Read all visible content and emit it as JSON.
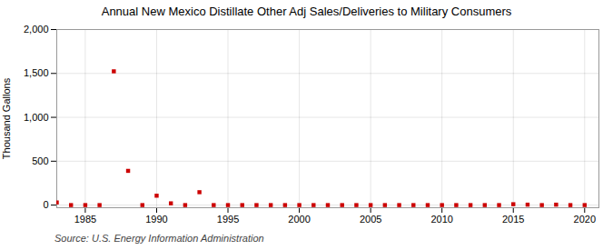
{
  "chart_data": {
    "type": "scatter",
    "title": "Annual New Mexico Distillate Other Adj Sales/Deliveries to Military Consumers",
    "ylabel": "Thousand Gallons",
    "annotations": [
      "Source: U.S. Energy Information Administration"
    ],
    "x": [
      1983,
      1984,
      1985,
      1986,
      1987,
      1988,
      1989,
      1990,
      1991,
      1992,
      1993,
      1994,
      1995,
      1996,
      1997,
      1998,
      1999,
      2000,
      2001,
      2002,
      2003,
      2004,
      2005,
      2006,
      2007,
      2008,
      2009,
      2010,
      2011,
      2012,
      2013,
      2014,
      2015,
      2016,
      2017,
      2018,
      2019,
      2020
    ],
    "values": [
      30,
      0,
      0,
      0,
      1524,
      390,
      0,
      107,
      20,
      0,
      147,
      0,
      0,
      0,
      0,
      0,
      0,
      0,
      0,
      0,
      0,
      0,
      0,
      0,
      0,
      0,
      0,
      0,
      0,
      0,
      0,
      0,
      10,
      5,
      0,
      5,
      0,
      0
    ],
    "color": "#cc0000",
    "marker": "square",
    "xlim": [
      1983,
      2021
    ],
    "ylim": [
      -30,
      2000
    ],
    "xticks": [
      1985,
      1990,
      1995,
      2000,
      2005,
      2010,
      2015,
      2020
    ],
    "yticks": [
      0,
      500,
      {
        "value": 1000,
        "label": "1,000"
      },
      {
        "value": 1500,
        "label": "1,500"
      },
      {
        "value": 2000,
        "label": "2,000"
      }
    ],
    "grid": true
  }
}
